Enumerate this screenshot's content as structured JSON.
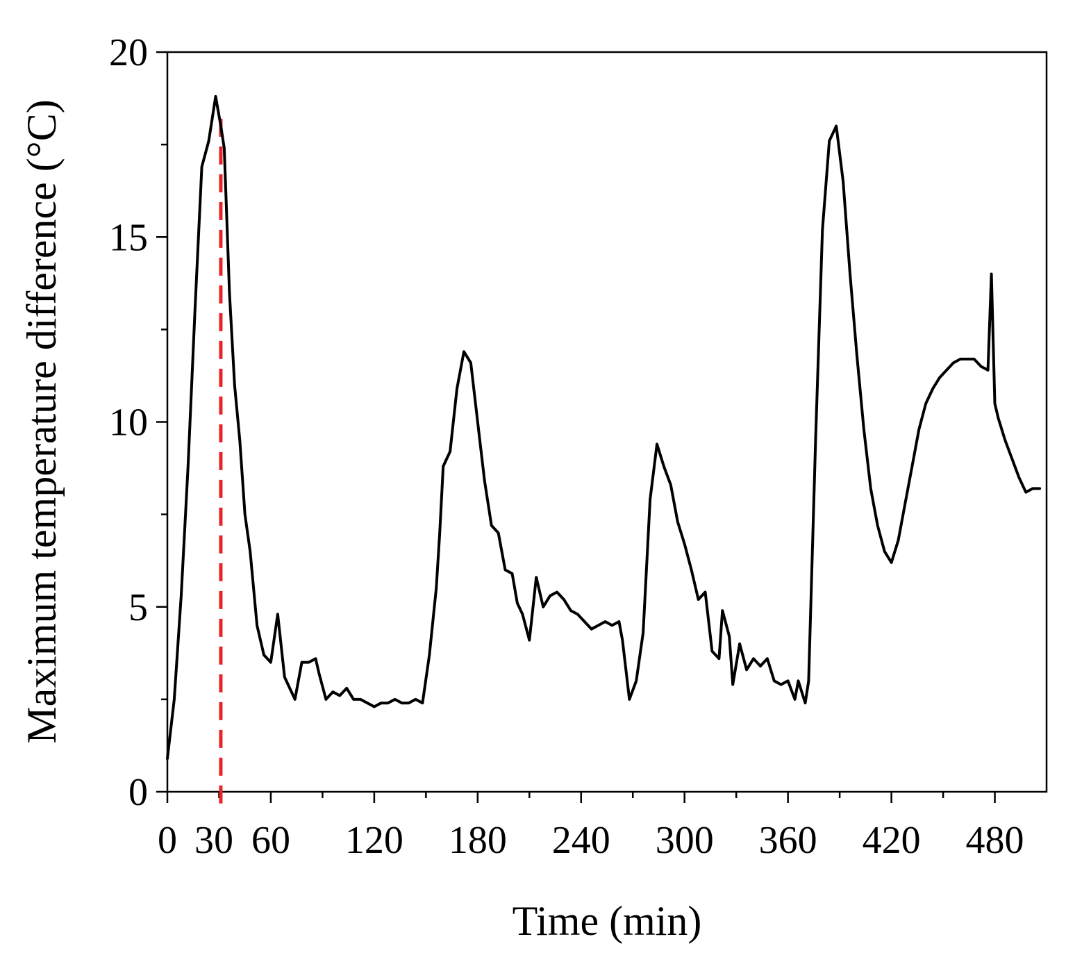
{
  "chart_data": {
    "type": "line",
    "title": "",
    "xlabel": "Time (min)",
    "ylabel": "Maximum temperature difference (°C)",
    "xlim": [
      0,
      510
    ],
    "ylim": [
      0,
      20
    ],
    "xticks": [
      0,
      30,
      60,
      120,
      180,
      240,
      300,
      360,
      420,
      480
    ],
    "xtick_labels": [
      "0",
      "30",
      "60",
      "120",
      "180",
      "240",
      "300",
      "360",
      "420",
      "480"
    ],
    "yticks": [
      0,
      5,
      10,
      15,
      20
    ],
    "ytick_labels": [
      "0",
      "5",
      "10",
      "15",
      "20"
    ],
    "grid": false,
    "highlight": {
      "x": 31,
      "label": "30",
      "y_top": 18.2,
      "color": "#e8242a",
      "style": "dashed"
    },
    "line_color": "#000000",
    "series": [
      {
        "name": "Maximum temperature difference",
        "x": [
          0,
          4,
          8,
          12,
          16,
          20,
          24,
          28,
          31,
          33,
          36,
          39,
          42,
          45,
          48,
          52,
          56,
          60,
          64,
          68,
          70,
          74,
          78,
          82,
          86,
          88,
          92,
          96,
          100,
          104,
          108,
          112,
          116,
          120,
          124,
          128,
          132,
          136,
          140,
          144,
          148,
          152,
          156,
          158,
          160,
          164,
          168,
          172,
          176,
          180,
          184,
          188,
          192,
          196,
          200,
          203,
          206,
          210,
          214,
          218,
          222,
          226,
          230,
          234,
          238,
          242,
          246,
          250,
          254,
          258,
          262,
          264,
          268,
          272,
          276,
          280,
          284,
          288,
          292,
          296,
          300,
          304,
          308,
          312,
          316,
          320,
          322,
          326,
          328,
          332,
          336,
          340,
          344,
          348,
          352,
          356,
          360,
          364,
          366,
          370,
          372,
          376,
          380,
          384,
          388,
          392,
          396,
          400,
          404,
          408,
          412,
          416,
          420,
          424,
          428,
          432,
          436,
          440,
          444,
          448,
          452,
          456,
          460,
          464,
          468,
          472,
          476,
          478,
          480,
          482,
          486,
          490,
          494,
          498,
          502,
          506
        ],
        "values": [
          0.9,
          2.5,
          5.3,
          8.8,
          13.0,
          16.9,
          17.6,
          18.8,
          18.0,
          17.4,
          13.5,
          11.0,
          9.5,
          7.5,
          6.5,
          4.5,
          3.7,
          3.5,
          4.8,
          3.1,
          2.9,
          2.5,
          3.5,
          3.5,
          3.6,
          3.2,
          2.5,
          2.7,
          2.6,
          2.8,
          2.5,
          2.5,
          2.4,
          2.3,
          2.4,
          2.4,
          2.5,
          2.4,
          2.4,
          2.5,
          2.4,
          3.7,
          5.5,
          7.0,
          8.8,
          9.2,
          10.9,
          11.9,
          11.6,
          10.0,
          8.4,
          7.2,
          7.0,
          6.0,
          5.9,
          5.1,
          4.8,
          4.1,
          5.8,
          5.0,
          5.3,
          5.4,
          5.2,
          4.9,
          4.8,
          4.6,
          4.4,
          4.5,
          4.6,
          4.5,
          4.6,
          4.1,
          2.5,
          3.0,
          4.3,
          7.9,
          9.4,
          8.8,
          8.3,
          7.3,
          6.7,
          6.0,
          5.2,
          5.4,
          3.8,
          3.6,
          4.9,
          4.2,
          2.9,
          4.0,
          3.3,
          3.6,
          3.4,
          3.6,
          3.0,
          2.9,
          3.0,
          2.5,
          3.0,
          2.4,
          3.0,
          9.5,
          15.2,
          17.6,
          18.0,
          16.5,
          14.0,
          11.8,
          9.8,
          8.2,
          7.2,
          6.5,
          6.2,
          6.8,
          7.8,
          8.8,
          9.8,
          10.5,
          10.9,
          11.2,
          11.4,
          11.6,
          11.7,
          11.7,
          11.7,
          11.5,
          11.4,
          14.0,
          10.5,
          10.1,
          9.5,
          9.0,
          8.5,
          8.1,
          8.2,
          8.2
        ]
      }
    ]
  }
}
